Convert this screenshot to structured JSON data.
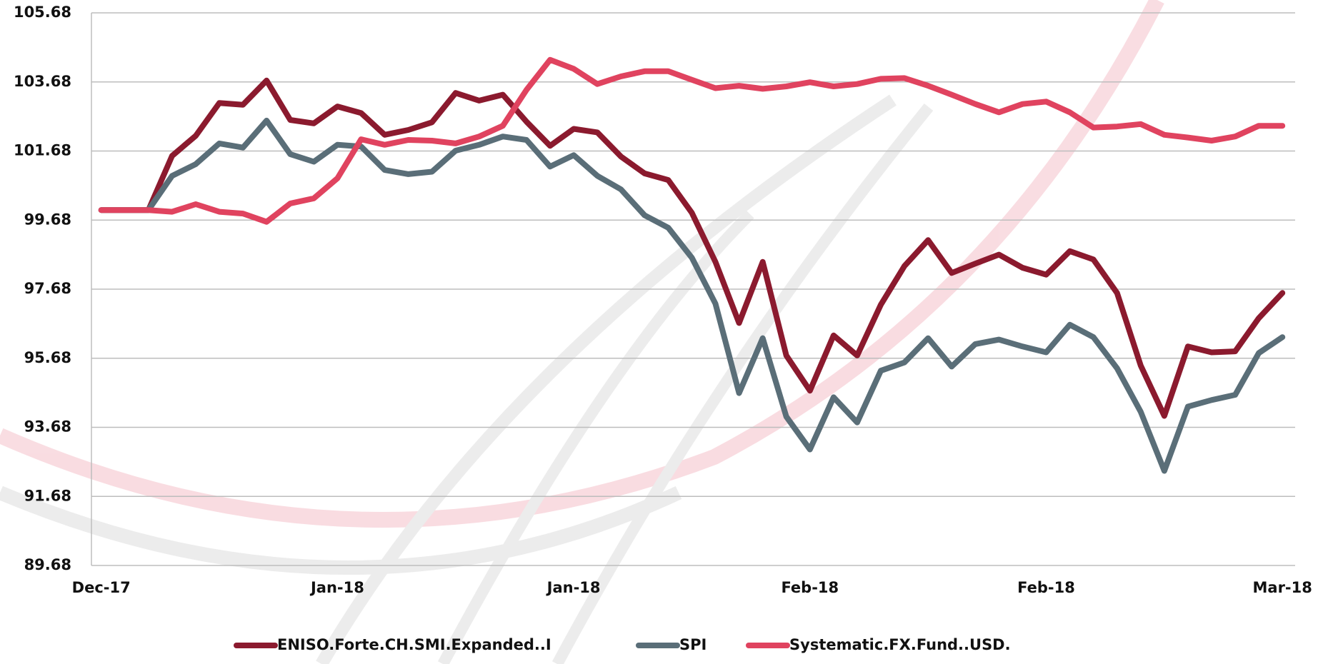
{
  "chart_data": {
    "type": "line",
    "categories": [
      "Dec-17",
      null,
      null,
      null,
      null,
      null,
      null,
      null,
      null,
      null,
      "Jan-18",
      null,
      null,
      null,
      null,
      null,
      null,
      null,
      null,
      null,
      "Jan-18",
      null,
      null,
      null,
      null,
      null,
      null,
      null,
      null,
      null,
      "Feb-18",
      null,
      null,
      null,
      null,
      null,
      null,
      null,
      null,
      null,
      "Feb-18",
      null,
      null,
      null,
      null,
      null,
      null,
      null,
      null,
      null,
      "Mar-18"
    ],
    "series": [
      {
        "name": "ENISO.Forte.CH.SMI.Expanded..I",
        "color": "#8b1a2e",
        "values": [
          99.97,
          99.97,
          99.97,
          101.54,
          102.12,
          103.07,
          103.02,
          103.72,
          102.58,
          102.48,
          102.97,
          102.78,
          102.15,
          102.29,
          102.51,
          103.36,
          103.14,
          103.31,
          102.53,
          101.83,
          102.32,
          102.22,
          101.52,
          101.03,
          100.84,
          99.89,
          98.47,
          96.7,
          98.47,
          95.76,
          94.74,
          96.34,
          95.76,
          97.23,
          98.35,
          99.1,
          98.15,
          98.42,
          98.68,
          98.3,
          98.1,
          98.78,
          98.54,
          97.57,
          95.47,
          94.01,
          96.02,
          95.85,
          95.88,
          96.84,
          97.57
        ]
      },
      {
        "name": "SPI",
        "color": "#5a6e78",
        "values": [
          99.97,
          99.97,
          99.97,
          100.96,
          101.3,
          101.9,
          101.78,
          102.56,
          101.59,
          101.37,
          101.86,
          101.81,
          101.13,
          101.01,
          101.08,
          101.69,
          101.86,
          102.1,
          102.0,
          101.23,
          101.56,
          100.96,
          100.57,
          99.82,
          99.46,
          98.59,
          97.26,
          94.67,
          96.26,
          93.99,
          93.04,
          94.55,
          93.82,
          95.32,
          95.56,
          96.26,
          95.44,
          96.09,
          96.22,
          96.02,
          95.85,
          96.65,
          96.29,
          95.39,
          94.13,
          92.42,
          94.28,
          94.47,
          94.62,
          95.83,
          96.29
        ]
      },
      {
        "name": "Systematic.FX.Fund..USD.",
        "color": "#e0435f",
        "values": [
          99.97,
          99.97,
          99.97,
          99.92,
          100.14,
          99.92,
          99.87,
          99.63,
          100.16,
          100.31,
          100.89,
          102.02,
          101.86,
          102.0,
          101.98,
          101.9,
          102.1,
          102.41,
          103.45,
          104.32,
          104.06,
          103.62,
          103.84,
          103.99,
          103.99,
          103.74,
          103.5,
          103.57,
          103.48,
          103.55,
          103.67,
          103.55,
          103.62,
          103.77,
          103.79,
          103.57,
          103.31,
          103.04,
          102.8,
          103.04,
          103.11,
          102.8,
          102.36,
          102.39,
          102.46,
          102.15,
          102.07,
          101.98,
          102.1,
          102.41,
          102.41
        ]
      }
    ],
    "ylim": [
      89.68,
      105.68
    ],
    "yticks": [
      89.68,
      91.68,
      93.68,
      95.68,
      97.68,
      99.68,
      101.68,
      103.68,
      105.68
    ],
    "grid": true,
    "legend": "bottom"
  }
}
